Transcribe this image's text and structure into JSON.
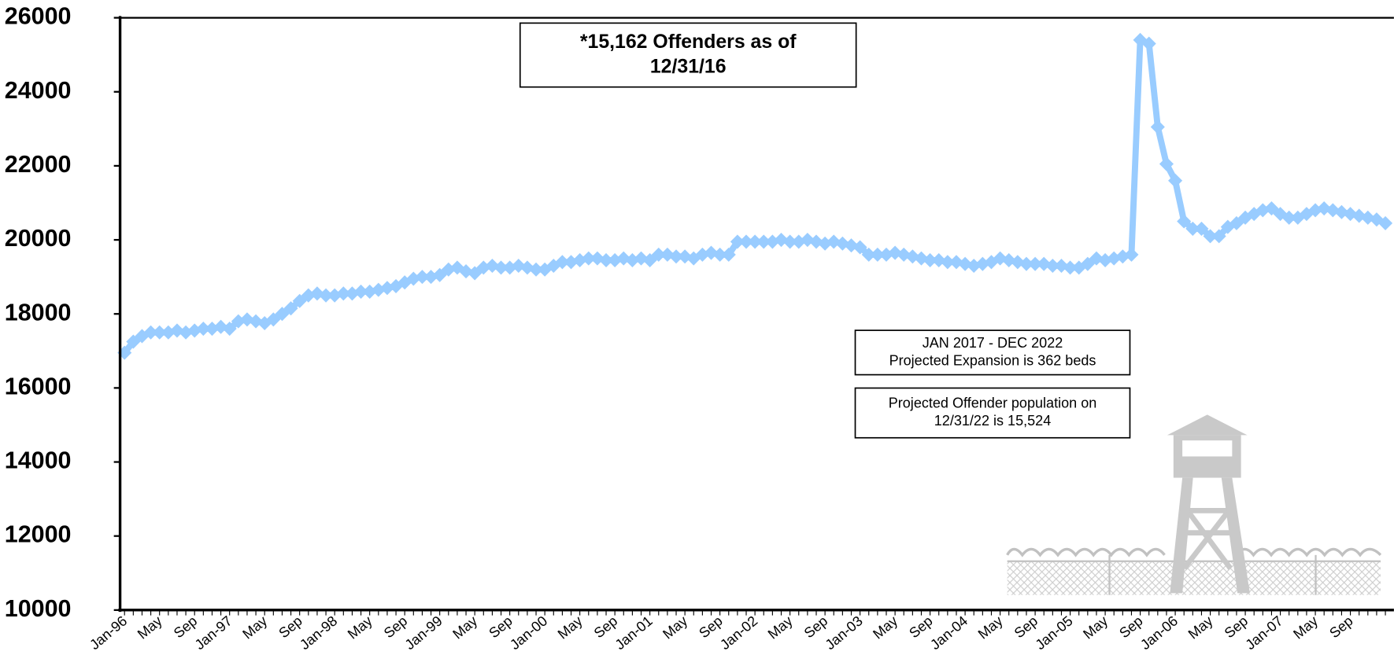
{
  "chart_data": {
    "type": "line",
    "color": "#99ccff",
    "ylim": [
      10000,
      26000
    ],
    "yticks": [
      10000,
      12000,
      14000,
      16000,
      18000,
      20000,
      22000,
      24000,
      26000
    ],
    "categories": [
      "Jan-96",
      null,
      null,
      null,
      "May",
      null,
      null,
      null,
      "Sep",
      null,
      null,
      null,
      "Jan-97",
      null,
      null,
      null,
      "May",
      null,
      null,
      null,
      "Sep",
      null,
      null,
      null,
      "Jan-98",
      null,
      null,
      null,
      "May",
      null,
      null,
      null,
      "Sep",
      null,
      null,
      null,
      "Jan-99",
      null,
      null,
      null,
      "May",
      null,
      null,
      null,
      "Sep",
      null,
      null,
      null,
      "Jan-00",
      null,
      null,
      null,
      "May",
      null,
      null,
      null,
      "Sep",
      null,
      null,
      null,
      "Jan-01",
      null,
      null,
      null,
      "May",
      null,
      null,
      null,
      "Sep",
      null,
      null,
      null,
      "Jan-02",
      null,
      null,
      null,
      "May",
      null,
      null,
      null,
      "Sep",
      null,
      null,
      null,
      "Jan-03",
      null,
      null,
      null,
      "May",
      null,
      null,
      null,
      "Sep",
      null,
      null,
      null,
      "Jan-04",
      null,
      null,
      null,
      "May",
      null,
      null,
      null,
      "Sep",
      null,
      null,
      null,
      "Jan-05",
      null,
      null,
      null,
      "May",
      null,
      null,
      null,
      "Sep",
      null,
      null,
      null,
      "Jan-06",
      null,
      null,
      null,
      "May",
      null,
      null,
      null,
      "Sep",
      null,
      null,
      null,
      "Jan-07",
      null,
      null,
      null,
      "May",
      null,
      null,
      null,
      "Sep",
      null,
      null,
      null,
      null
    ],
    "values": [
      16950,
      17250,
      17400,
      17500,
      17500,
      17500,
      17550,
      17500,
      17550,
      17600,
      17600,
      17650,
      17600,
      17800,
      17850,
      17800,
      17750,
      17850,
      18000,
      18150,
      18350,
      18500,
      18550,
      18500,
      18500,
      18550,
      18550,
      18600,
      18600,
      18650,
      18700,
      18750,
      18850,
      18950,
      19000,
      19000,
      19050,
      19200,
      19250,
      19150,
      19100,
      19250,
      19300,
      19250,
      19250,
      19300,
      19250,
      19200,
      19200,
      19300,
      19400,
      19400,
      19450,
      19500,
      19500,
      19450,
      19450,
      19500,
      19450,
      19500,
      19450,
      19600,
      19600,
      19550,
      19550,
      19500,
      19600,
      19650,
      19600,
      19600,
      19950,
      19950,
      19950,
      19950,
      19950,
      20000,
      19950,
      19950,
      20000,
      19950,
      19900,
      19950,
      19900,
      19850,
      19800,
      19600,
      19600,
      19600,
      19650,
      19600,
      19550,
      19500,
      19450,
      19450,
      19400,
      19400,
      19350,
      19300,
      19350,
      19400,
      19500,
      19450,
      19400,
      19350,
      19350,
      19350,
      19300,
      19300,
      19250,
      19250,
      19350,
      19500,
      19450,
      19500,
      19550,
      19600,
      25400,
      25300,
      23050,
      22050,
      21600,
      20500,
      20300,
      20300,
      20100,
      20100,
      20350,
      20450,
      20600,
      20700,
      20800,
      20850,
      20700,
      20600,
      20600,
      20700,
      20800,
      20850,
      20800,
      20750,
      20700,
      20650,
      20600,
      20550,
      20450
    ],
    "annotations": [
      {
        "lines": [
          "*15,162 Offenders as  of",
          "12/31/16"
        ]
      },
      {
        "lines": [
          "JAN 2017 - DEC 2022",
          "Projected Expansion is 362 beds"
        ]
      },
      {
        "lines": [
          "Projected Offender population on",
          "12/31/22 is 15,524"
        ]
      }
    ]
  }
}
